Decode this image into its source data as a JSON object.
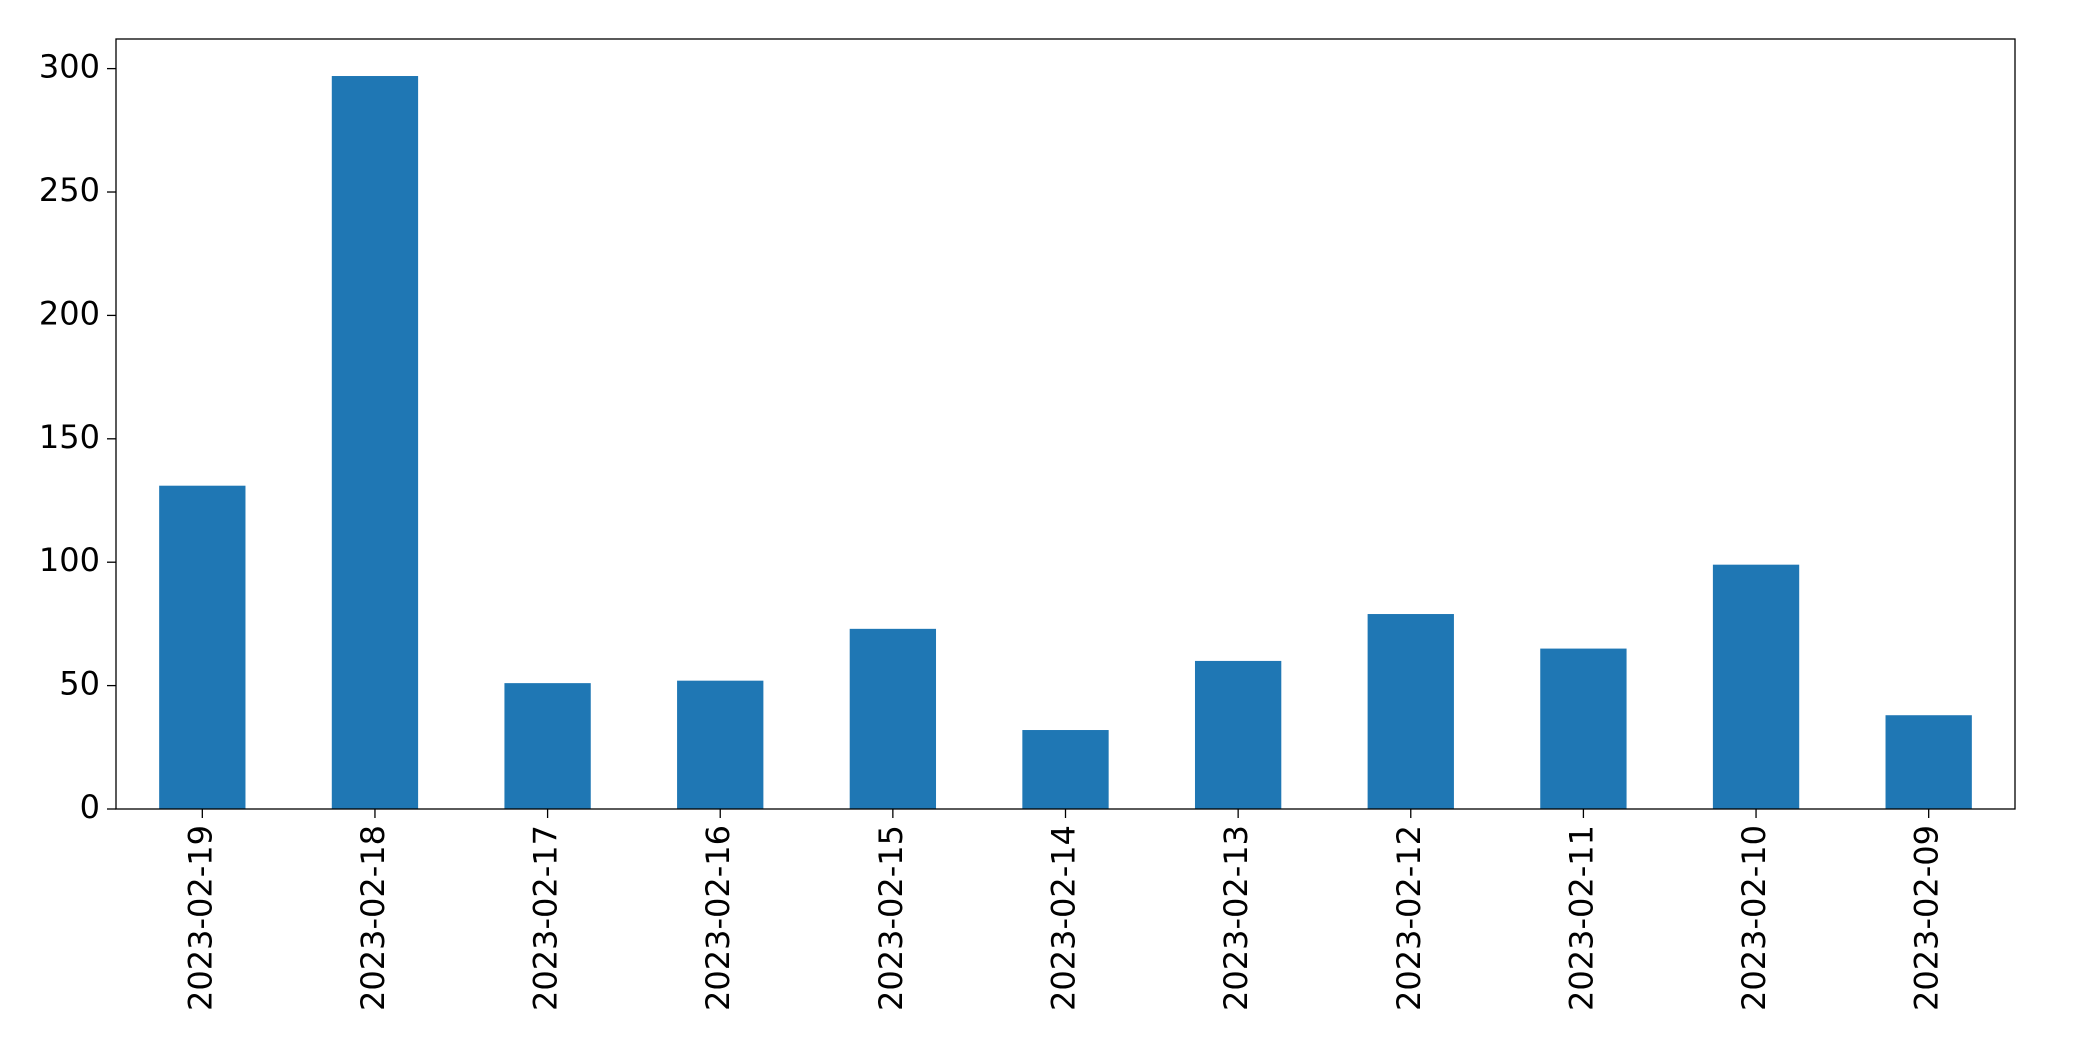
{
  "chart_data": {
    "type": "bar",
    "categories": [
      "2023-02-19",
      "2023-02-18",
      "2023-02-17",
      "2023-02-16",
      "2023-02-15",
      "2023-02-14",
      "2023-02-13",
      "2023-02-12",
      "2023-02-11",
      "2023-02-10",
      "2023-02-09"
    ],
    "values": [
      131,
      297,
      51,
      52,
      73,
      32,
      60,
      79,
      65,
      99,
      38
    ],
    "color": "#1f77b4",
    "ylim": [
      0,
      312
    ],
    "yticks": [
      0,
      50,
      100,
      150,
      200,
      250,
      300
    ],
    "grid": false
  }
}
